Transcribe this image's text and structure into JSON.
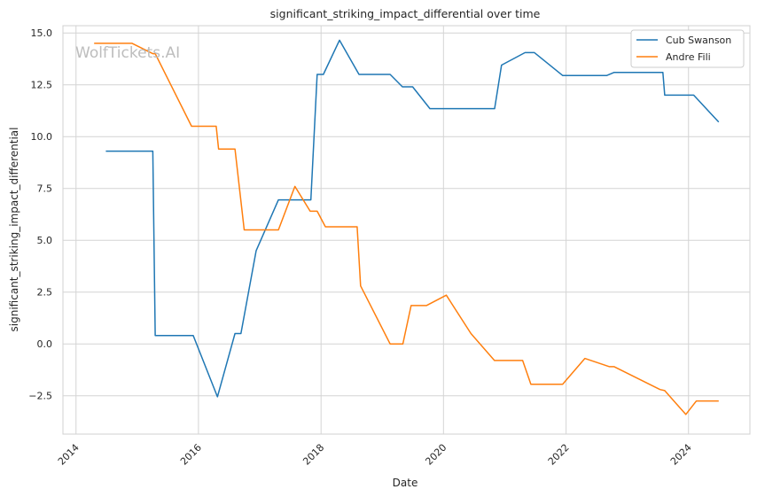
{
  "chart_data": {
    "type": "line",
    "title": "significant_striking_impact_differential over time",
    "xlabel": "Date",
    "ylabel": "significant_striking_impact_differential",
    "watermark": "WolfTickets.AI",
    "x_ticks": [
      "2014",
      "2016",
      "2018",
      "2020",
      "2022",
      "2024"
    ],
    "y_ticks": [
      "−2.5",
      "0.0",
      "2.5",
      "5.0",
      "7.5",
      "10.0",
      "12.5",
      "15.0"
    ],
    "xlim": [
      "2013-10-15",
      "2025-01-01"
    ],
    "ylim": [
      -4.35,
      15.35
    ],
    "grid": true,
    "legend_position": "top-right",
    "colors": {
      "Cub Swanson": "#1f77b4",
      "Andre Fili": "#ff7f0e"
    },
    "series": [
      {
        "name": "Cub Swanson",
        "points": [
          [
            "2014-06-28",
            9.3
          ],
          [
            "2015-04-04",
            9.3
          ],
          [
            "2015-04-18",
            0.4
          ],
          [
            "2015-12-01",
            0.4
          ],
          [
            "2016-04-23",
            -2.55
          ],
          [
            "2016-08-06",
            0.5
          ],
          [
            "2016-09-10",
            0.5
          ],
          [
            "2016-12-10",
            4.5
          ],
          [
            "2017-04-22",
            6.95
          ],
          [
            "2017-11-01",
            6.95
          ],
          [
            "2017-12-09",
            13.0
          ],
          [
            "2018-01-15",
            13.0
          ],
          [
            "2018-04-21",
            14.65
          ],
          [
            "2018-08-15",
            13.0
          ],
          [
            "2019-02-17",
            13.0
          ],
          [
            "2019-05-01",
            12.4
          ],
          [
            "2019-07-01",
            12.4
          ],
          [
            "2019-10-12",
            11.35
          ],
          [
            "2020-11-01",
            11.35
          ],
          [
            "2020-12-12",
            13.45
          ],
          [
            "2021-05-01",
            14.05
          ],
          [
            "2021-06-26",
            14.05
          ],
          [
            "2021-12-11",
            12.95
          ],
          [
            "2022-09-01",
            12.95
          ],
          [
            "2022-10-15",
            13.1
          ],
          [
            "2023-08-01",
            13.1
          ],
          [
            "2023-08-12",
            12.0
          ],
          [
            "2024-02-01",
            12.0
          ],
          [
            "2024-06-29",
            10.7
          ]
        ]
      },
      {
        "name": "Andre Fili",
        "points": [
          [
            "2014-04-19",
            14.5
          ],
          [
            "2014-10-04",
            14.5
          ],
          [
            "2014-12-01",
            14.5
          ],
          [
            "2015-04-04",
            14.0
          ],
          [
            "2015-04-18",
            14.0
          ],
          [
            "2015-11-21",
            10.5
          ],
          [
            "2016-04-16",
            10.5
          ],
          [
            "2016-04-30",
            9.4
          ],
          [
            "2016-08-06",
            9.4
          ],
          [
            "2016-09-30",
            5.5
          ],
          [
            "2017-04-22",
            5.5
          ],
          [
            "2017-07-29",
            7.6
          ],
          [
            "2017-10-28",
            6.4
          ],
          [
            "2017-12-09",
            6.4
          ],
          [
            "2018-01-27",
            5.65
          ],
          [
            "2018-08-04",
            5.65
          ],
          [
            "2018-08-25",
            2.8
          ],
          [
            "2019-02-17",
            0.0
          ],
          [
            "2019-05-04",
            0.0
          ],
          [
            "2019-06-22",
            1.85
          ],
          [
            "2019-09-21",
            1.85
          ],
          [
            "2020-01-18",
            2.35
          ],
          [
            "2020-06-13",
            0.5
          ],
          [
            "2020-10-31",
            -0.8
          ],
          [
            "2021-04-17",
            -0.8
          ],
          [
            "2021-06-05",
            -1.95
          ],
          [
            "2021-11-01",
            -1.95
          ],
          [
            "2021-12-11",
            -1.95
          ],
          [
            "2022-04-23",
            -0.7
          ],
          [
            "2022-09-17",
            -1.1
          ],
          [
            "2022-10-15",
            -1.1
          ],
          [
            "2023-07-15",
            -2.2
          ],
          [
            "2023-08-12",
            -2.25
          ],
          [
            "2023-12-16",
            -3.4
          ],
          [
            "2024-02-17",
            -2.75
          ],
          [
            "2024-06-29",
            -2.75
          ]
        ]
      }
    ]
  }
}
